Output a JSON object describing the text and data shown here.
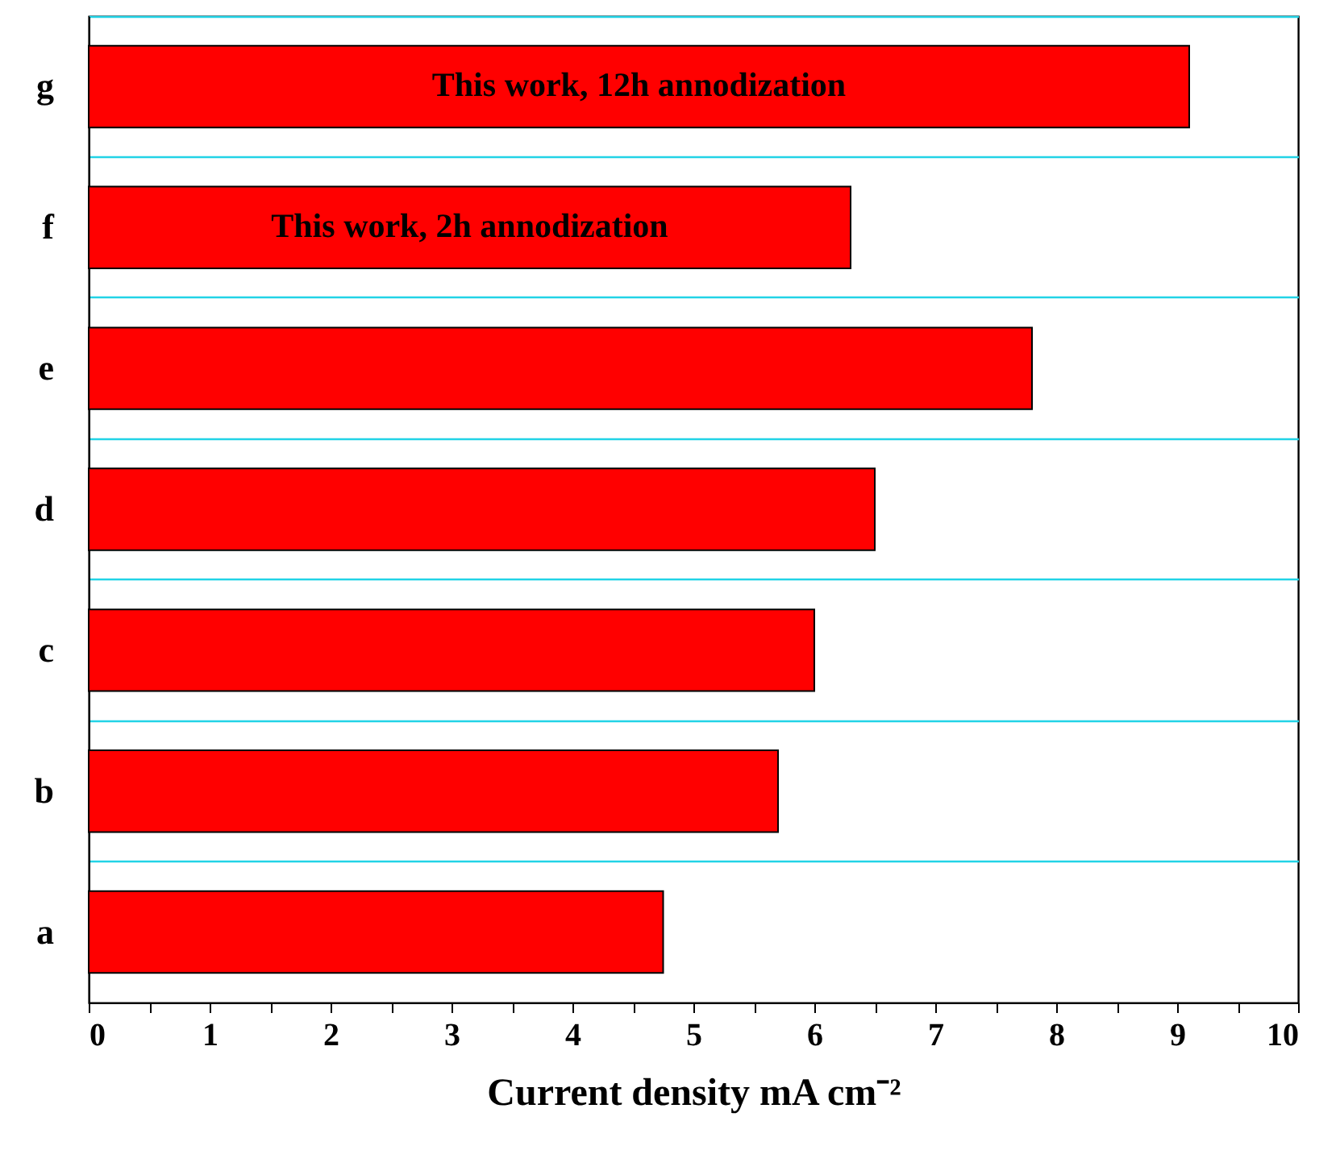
{
  "chart_data": {
    "type": "bar",
    "orientation": "horizontal",
    "xlabel": "Current density mA cm⁻²",
    "categories": [
      "g",
      "f",
      "e",
      "d",
      "c",
      "b",
      "a"
    ],
    "values": [
      9.1,
      6.3,
      7.8,
      6.5,
      6.0,
      5.7,
      4.75
    ],
    "color": "#ff0000",
    "xlim": [
      0,
      10
    ],
    "xticks": [
      0,
      {
        "value": 0.5,
        "label": null
      },
      1,
      {
        "value": 1.5,
        "label": null
      },
      2,
      {
        "value": 2.5,
        "label": null
      },
      3,
      {
        "value": 3.5,
        "label": null
      },
      4,
      {
        "value": 4.5,
        "label": null
      },
      5,
      {
        "value": 5.5,
        "label": null
      },
      6,
      {
        "value": 6.5,
        "label": null
      },
      7,
      {
        "value": 7.5,
        "label": null
      },
      8,
      {
        "value": 8.5,
        "label": null
      },
      9,
      {
        "value": 9.5,
        "label": null
      },
      10
    ],
    "grid": "y",
    "annotations": [
      "This work, 12h annodization",
      "This work, 2h annodization"
    ]
  }
}
